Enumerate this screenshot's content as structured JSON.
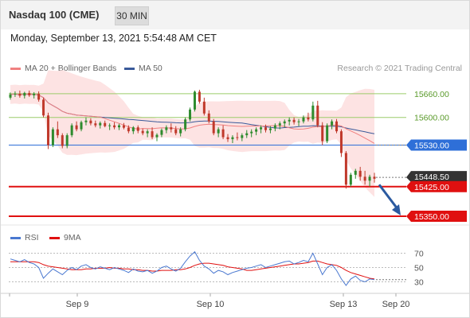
{
  "header": {
    "title": "Nasdaq 100 (CME)",
    "timeframe": "30 MIN"
  },
  "datetime": "Monday, September 13, 2021 5:54:48 AM CET",
  "legend": {
    "ma20": "MA 20 + Bollinger Bands",
    "ma50": "MA 50",
    "ma20_color": "#f08080",
    "ma50_color": "#3a5a9a"
  },
  "credit": "Research © 2021 Trading Central",
  "rsi_legend": {
    "rsi": "RSI",
    "ma9": "9MA",
    "rsi_color": "#4a78d0",
    "ma9_color": "#e01010"
  },
  "colors": {
    "bull": "#2e8b2e",
    "bear": "#c0392b",
    "resistance": "#9bcc6a",
    "pivot": "#2e6fd8",
    "support": "#e01010",
    "current": "#333333",
    "arrow": "#2b5aa0",
    "bands": "#fde0e0"
  },
  "chart_data": [
    {
      "type": "candlestick",
      "title": "Nasdaq 100 (CME)",
      "x_ticks": [
        "Sep 9",
        "Sep 10",
        "Sep 13",
        "Sep 20"
      ],
      "price_levels": [
        {
          "value": 15660.0,
          "label": "15660.00",
          "kind": "resistance"
        },
        {
          "value": 15600.0,
          "label": "15600.00",
          "kind": "resistance"
        },
        {
          "value": 15530.0,
          "label": "15530.00",
          "kind": "pivot"
        },
        {
          "value": 15448.5,
          "label": "15448.50",
          "kind": "current"
        },
        {
          "value": 15425.0,
          "label": "15425.00",
          "kind": "support"
        },
        {
          "value": 15350.0,
          "label": "15350.00",
          "kind": "support"
        }
      ],
      "ylim": [
        15330,
        15700
      ],
      "ohlc": [
        [
          15650,
          15663,
          15645,
          15658
        ],
        [
          15658,
          15666,
          15652,
          15660
        ],
        [
          15660,
          15668,
          15650,
          15655
        ],
        [
          15655,
          15665,
          15648,
          15662
        ],
        [
          15662,
          15668,
          15652,
          15656
        ],
        [
          15656,
          15664,
          15648,
          15660
        ],
        [
          15660,
          15666,
          15640,
          15645
        ],
        [
          15645,
          15650,
          15600,
          15605
        ],
        [
          15605,
          15612,
          15520,
          15530
        ],
        [
          15530,
          15575,
          15525,
          15570
        ],
        [
          15570,
          15590,
          15548,
          15555
        ],
        [
          15555,
          15560,
          15522,
          15528
        ],
        [
          15528,
          15560,
          15522,
          15555
        ],
        [
          15555,
          15585,
          15550,
          15580
        ],
        [
          15580,
          15590,
          15565,
          15570
        ],
        [
          15570,
          15592,
          15565,
          15588
        ],
        [
          15588,
          15600,
          15580,
          15592
        ],
        [
          15592,
          15598,
          15580,
          15585
        ],
        [
          15585,
          15592,
          15575,
          15580
        ],
        [
          15580,
          15590,
          15572,
          15586
        ],
        [
          15586,
          15592,
          15575,
          15578
        ],
        [
          15578,
          15585,
          15568,
          15580
        ],
        [
          15580,
          15588,
          15570,
          15575
        ],
        [
          15575,
          15584,
          15568,
          15580
        ],
        [
          15580,
          15586,
          15570,
          15574
        ],
        [
          15574,
          15580,
          15560,
          15565
        ],
        [
          15565,
          15578,
          15558,
          15575
        ],
        [
          15575,
          15580,
          15560,
          15566
        ],
        [
          15566,
          15572,
          15555,
          15560
        ],
        [
          15560,
          15570,
          15550,
          15565
        ],
        [
          15565,
          15575,
          15545,
          15550
        ],
        [
          15550,
          15560,
          15540,
          15556
        ],
        [
          15556,
          15572,
          15550,
          15568
        ],
        [
          15568,
          15580,
          15560,
          15575
        ],
        [
          15575,
          15585,
          15562,
          15570
        ],
        [
          15570,
          15578,
          15555,
          15560
        ],
        [
          15560,
          15575,
          15552,
          15570
        ],
        [
          15570,
          15600,
          15565,
          15595
        ],
        [
          15595,
          15625,
          15590,
          15620
        ],
        [
          15620,
          15668,
          15615,
          15665
        ],
        [
          15665,
          15670,
          15635,
          15640
        ],
        [
          15640,
          15650,
          15605,
          15610
        ],
        [
          15610,
          15618,
          15585,
          15590
        ],
        [
          15590,
          15596,
          15555,
          15560
        ],
        [
          15560,
          15575,
          15550,
          15570
        ],
        [
          15570,
          15580,
          15545,
          15550
        ],
        [
          15550,
          15558,
          15538,
          15545
        ],
        [
          15545,
          15555,
          15535,
          15550
        ],
        [
          15550,
          15562,
          15542,
          15548
        ],
        [
          15548,
          15560,
          15540,
          15555
        ],
        [
          15555,
          15568,
          15548,
          15560
        ],
        [
          15560,
          15570,
          15550,
          15564
        ],
        [
          15564,
          15575,
          15555,
          15570
        ],
        [
          15570,
          15580,
          15560,
          15575
        ],
        [
          15575,
          15582,
          15562,
          15568
        ],
        [
          15568,
          15578,
          15560,
          15572
        ],
        [
          15572,
          15585,
          15565,
          15580
        ],
        [
          15580,
          15590,
          15570,
          15585
        ],
        [
          15585,
          15595,
          15575,
          15590
        ],
        [
          15590,
          15600,
          15580,
          15594
        ],
        [
          15594,
          15600,
          15582,
          15588
        ],
        [
          15588,
          15596,
          15578,
          15590
        ],
        [
          15590,
          15605,
          15585,
          15600
        ],
        [
          15600,
          15612,
          15590,
          15595
        ],
        [
          15595,
          15640,
          15590,
          15630
        ],
        [
          15630,
          15642,
          15575,
          15580
        ],
        [
          15580,
          15588,
          15530,
          15540
        ],
        [
          15540,
          15585,
          15535,
          15580
        ],
        [
          15580,
          15595,
          15570,
          15590
        ],
        [
          15590,
          15596,
          15560,
          15565
        ],
        [
          15565,
          15570,
          15500,
          15510
        ],
        [
          15510,
          15515,
          15420,
          15430
        ],
        [
          15430,
          15460,
          15425,
          15455
        ],
        [
          15455,
          15470,
          15445,
          15465
        ],
        [
          15465,
          15475,
          15440,
          15450
        ],
        [
          15450,
          15465,
          15430,
          15440
        ],
        [
          15440,
          15455,
          15425,
          15450
        ],
        [
          15450,
          15460,
          15435,
          15445
        ]
      ]
    },
    {
      "type": "line",
      "title": "RSI",
      "y_ticks": [
        70,
        50,
        30
      ],
      "ylim": [
        15,
        85
      ],
      "series": [
        {
          "name": "RSI",
          "values": [
            62,
            60,
            58,
            61,
            57,
            55,
            50,
            35,
            42,
            48,
            44,
            40,
            46,
            50,
            47,
            52,
            54,
            50,
            48,
            51,
            49,
            47,
            50,
            48,
            46,
            43,
            48,
            45,
            44,
            46,
            42,
            45,
            50,
            52,
            48,
            45,
            49,
            58,
            66,
            72,
            60,
            52,
            48,
            42,
            46,
            44,
            40,
            43,
            45,
            47,
            49,
            50,
            52,
            54,
            50,
            52,
            54,
            56,
            58,
            59,
            55,
            57,
            60,
            58,
            70,
            55,
            40,
            50,
            54,
            46,
            34,
            25,
            34,
            38,
            32,
            30,
            34,
            33
          ]
        },
        {
          "name": "9MA",
          "values": [
            58,
            58,
            58,
            58,
            58,
            58,
            57,
            54,
            52,
            51,
            50,
            49,
            48,
            47,
            47,
            47,
            48,
            48,
            49,
            49,
            49,
            50,
            49,
            49,
            48,
            48,
            47,
            47,
            46,
            46,
            45,
            45,
            46,
            46,
            46,
            47,
            47,
            48,
            50,
            53,
            55,
            56,
            56,
            55,
            54,
            53,
            51,
            50,
            49,
            48,
            46,
            46,
            47,
            48,
            49,
            50,
            51,
            52,
            53,
            54,
            55,
            55,
            56,
            57,
            59,
            59,
            57,
            55,
            54,
            53,
            50,
            46,
            43,
            41,
            39,
            37,
            35,
            34
          ]
        }
      ]
    }
  ]
}
